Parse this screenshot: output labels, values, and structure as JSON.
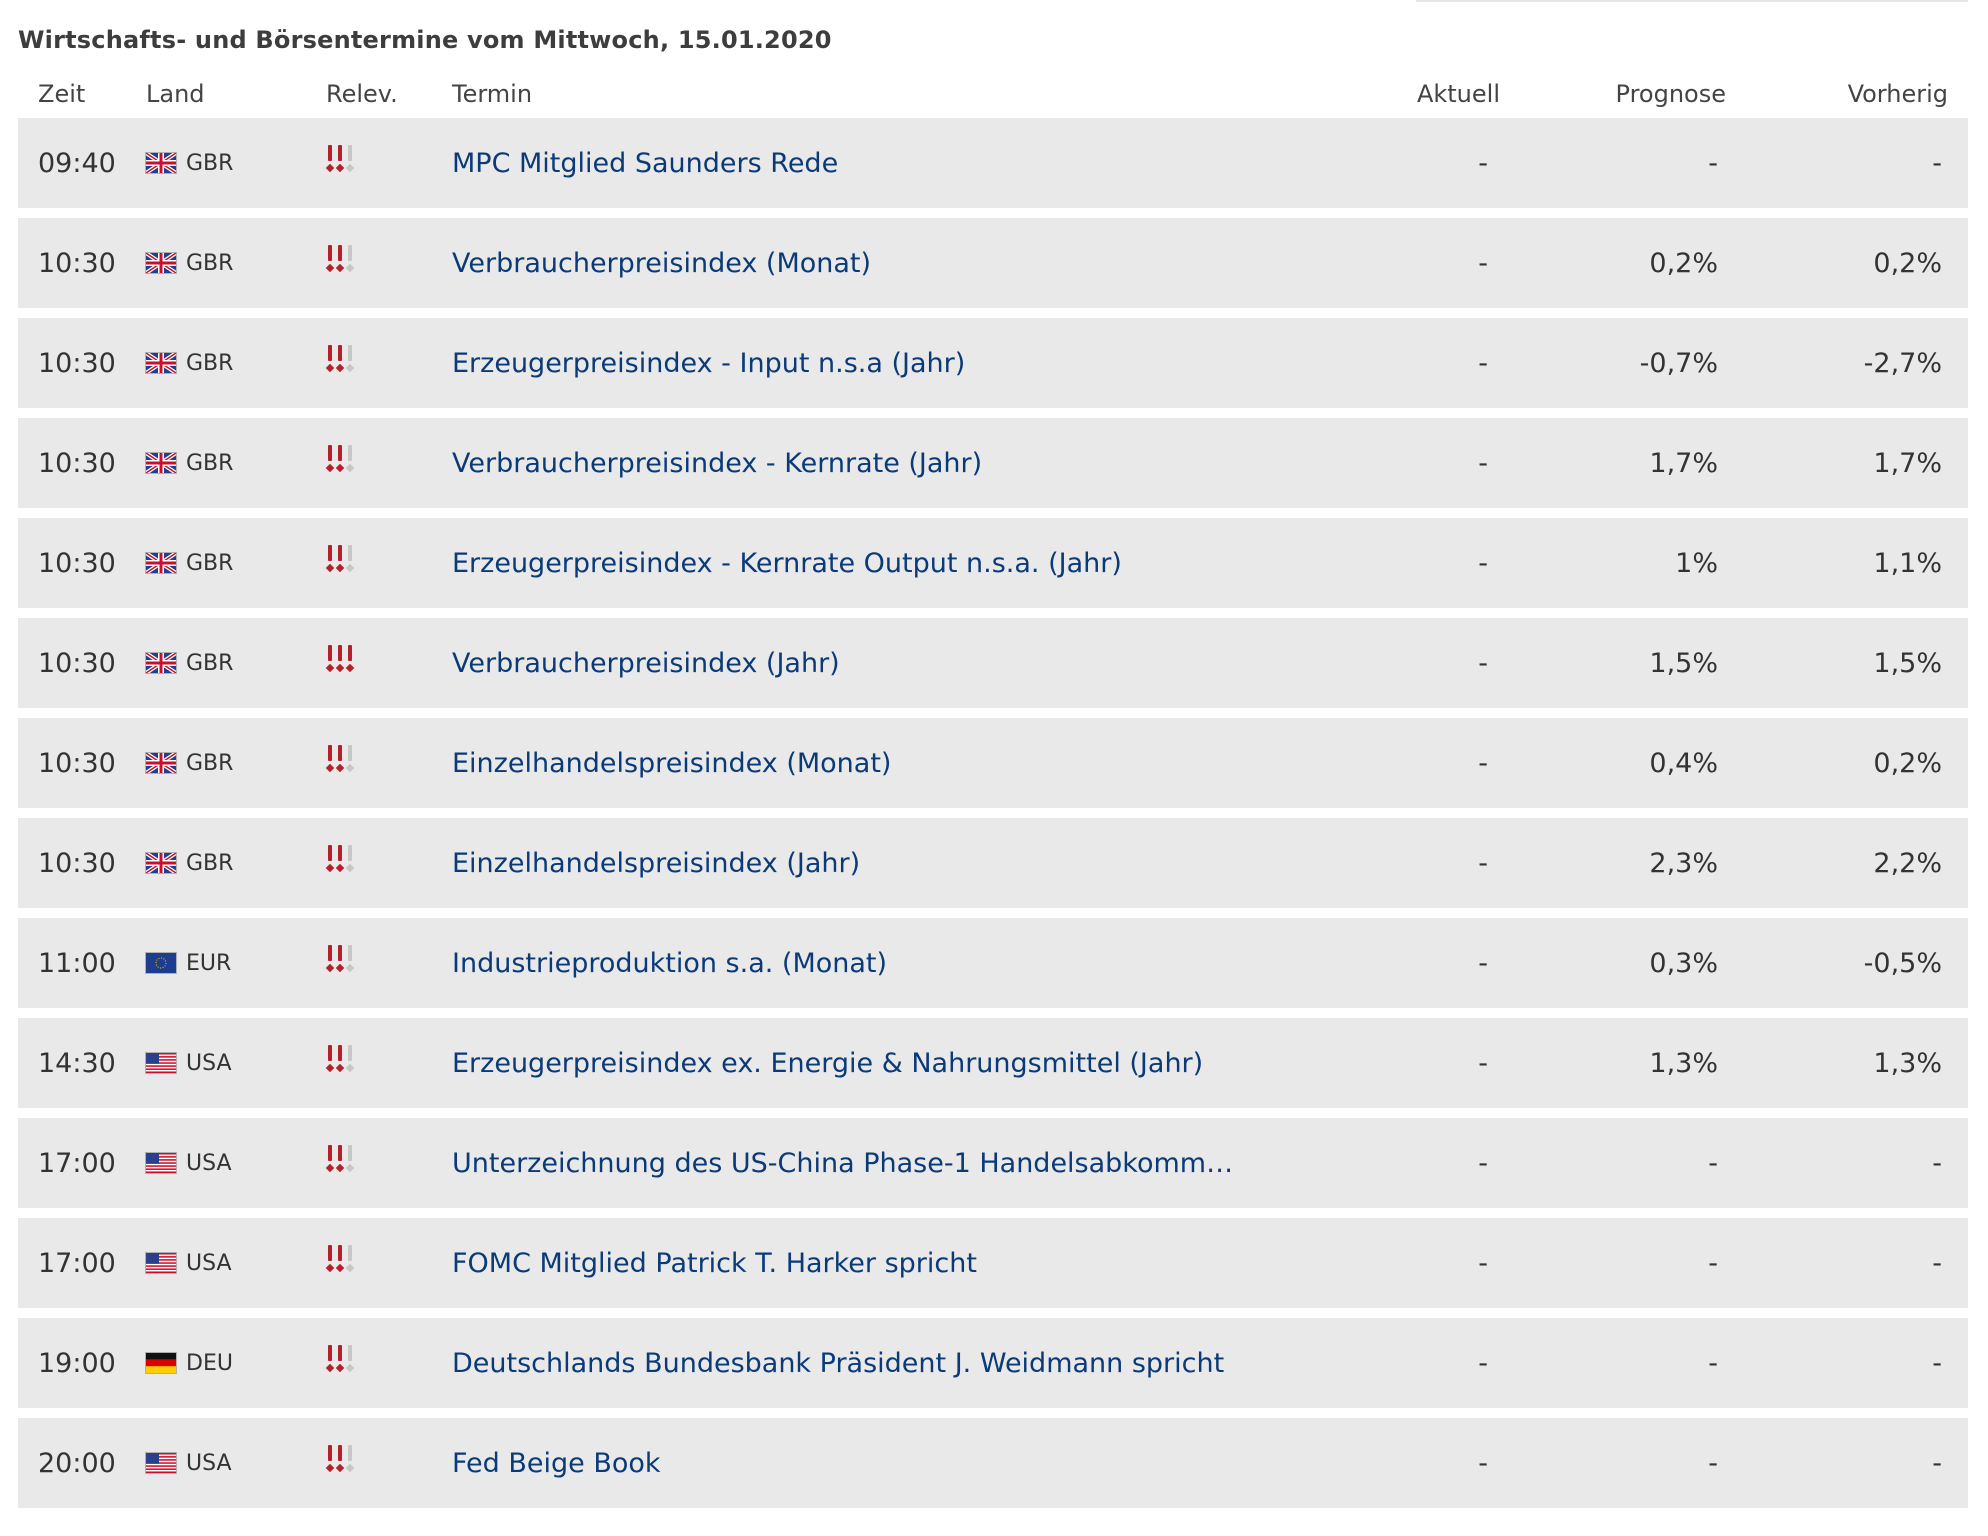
{
  "page": {
    "title": "Wirtschafts- und Börsentermine vom Mittwoch, 15.01.2020"
  },
  "columns": {
    "time": "Zeit",
    "land": "Land",
    "relevance": "Relev.",
    "termin": "Termin",
    "actual": "Aktuell",
    "forecast": "Prognose",
    "previous": "Vorherig"
  },
  "colors": {
    "relevance_on": "#b3212b",
    "relevance_off": "#c7c7c7",
    "link": "#0b3a78",
    "row_bg": "#e9e9e9"
  },
  "events": [
    {
      "time": "09:40",
      "country": "GBR",
      "flag_icon": "uk-flag-icon",
      "relevance": 2,
      "title": "MPC Mitglied Saunders Rede",
      "actual": "-",
      "forecast": "-",
      "previous": "-"
    },
    {
      "time": "10:30",
      "country": "GBR",
      "flag_icon": "uk-flag-icon",
      "relevance": 2,
      "title": "Verbraucherpreisindex (Monat)",
      "actual": "-",
      "forecast": "0,2%",
      "previous": "0,2%"
    },
    {
      "time": "10:30",
      "country": "GBR",
      "flag_icon": "uk-flag-icon",
      "relevance": 2,
      "title": "Erzeugerpreisindex - Input n.s.a (Jahr)",
      "actual": "-",
      "forecast": "-0,7%",
      "previous": "-2,7%"
    },
    {
      "time": "10:30",
      "country": "GBR",
      "flag_icon": "uk-flag-icon",
      "relevance": 2,
      "title": "Verbraucherpreisindex - Kernrate (Jahr)",
      "actual": "-",
      "forecast": "1,7%",
      "previous": "1,7%"
    },
    {
      "time": "10:30",
      "country": "GBR",
      "flag_icon": "uk-flag-icon",
      "relevance": 2,
      "title": "Erzeugerpreisindex - Kernrate Output n.s.a. (Jahr)",
      "actual": "-",
      "forecast": "1%",
      "previous": "1,1%"
    },
    {
      "time": "10:30",
      "country": "GBR",
      "flag_icon": "uk-flag-icon",
      "relevance": 3,
      "title": "Verbraucherpreisindex (Jahr)",
      "actual": "-",
      "forecast": "1,5%",
      "previous": "1,5%"
    },
    {
      "time": "10:30",
      "country": "GBR",
      "flag_icon": "uk-flag-icon",
      "relevance": 2,
      "title": "Einzelhandelspreisindex (Monat)",
      "actual": "-",
      "forecast": "0,4%",
      "previous": "0,2%"
    },
    {
      "time": "10:30",
      "country": "GBR",
      "flag_icon": "uk-flag-icon",
      "relevance": 2,
      "title": "Einzelhandelspreisindex (Jahr)",
      "actual": "-",
      "forecast": "2,3%",
      "previous": "2,2%"
    },
    {
      "time": "11:00",
      "country": "EUR",
      "flag_icon": "eu-flag-icon",
      "relevance": 2,
      "title": "Industrieproduktion s.a. (Monat)",
      "actual": "-",
      "forecast": "0,3%",
      "previous": "-0,5%"
    },
    {
      "time": "14:30",
      "country": "USA",
      "flag_icon": "us-flag-icon",
      "relevance": 2,
      "title": "Erzeugerpreisindex ex. Energie & Nahrungsmittel (Jahr)",
      "actual": "-",
      "forecast": "1,3%",
      "previous": "1,3%"
    },
    {
      "time": "17:00",
      "country": "USA",
      "flag_icon": "us-flag-icon",
      "relevance": 2,
      "title": "Unterzeichnung des US-China Phase-1 Handelsabkomm…",
      "actual": "-",
      "forecast": "-",
      "previous": "-"
    },
    {
      "time": "17:00",
      "country": "USA",
      "flag_icon": "us-flag-icon",
      "relevance": 2,
      "title": "FOMC Mitglied Patrick T. Harker spricht",
      "actual": "-",
      "forecast": "-",
      "previous": "-"
    },
    {
      "time": "19:00",
      "country": "DEU",
      "flag_icon": "de-flag-icon",
      "relevance": 2,
      "title": "Deutschlands Bundesbank Präsident J. Weidmann spricht",
      "actual": "-",
      "forecast": "-",
      "previous": "-"
    },
    {
      "time": "20:00",
      "country": "USA",
      "flag_icon": "us-flag-icon",
      "relevance": 2,
      "title": "Fed Beige Book",
      "actual": "-",
      "forecast": "-",
      "previous": "-"
    }
  ]
}
